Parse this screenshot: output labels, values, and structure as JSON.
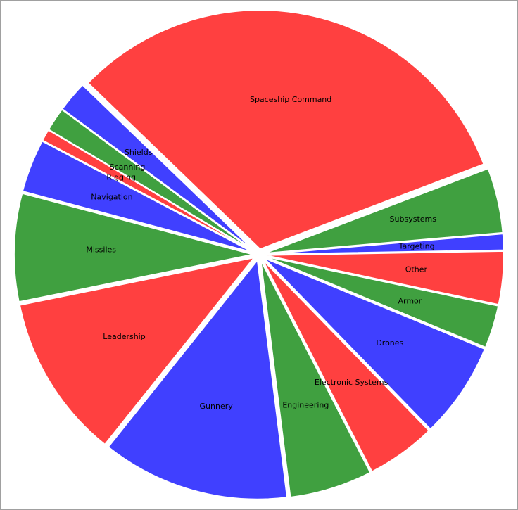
{
  "chart_data": {
    "type": "pie",
    "categories": [
      "Spaceship Command",
      "Subsystems",
      "Targeting",
      "Other",
      "Armor",
      "Drones",
      "Electronic Systems",
      "Engineering",
      "Gunnery",
      "Leadership",
      "Missiles",
      "Navigation",
      "Rigging",
      "Scanning",
      "Shields"
    ],
    "values": [
      32,
      4.4,
      1.1,
      3.6,
      2.9,
      6.5,
      4.7,
      5.6,
      12.7,
      11.1,
      7.3,
      3.6,
      0.8,
      1.6,
      2.1
    ],
    "colors": [
      "#ff4040",
      "#40a040",
      "#4040ff",
      "#ff4040",
      "#40a040",
      "#4040ff",
      "#ff4040",
      "#40a040",
      "#4040ff",
      "#ff4040",
      "#40a040",
      "#4040ff",
      "#ff4040",
      "#40a040",
      "#4040ff"
    ]
  }
}
